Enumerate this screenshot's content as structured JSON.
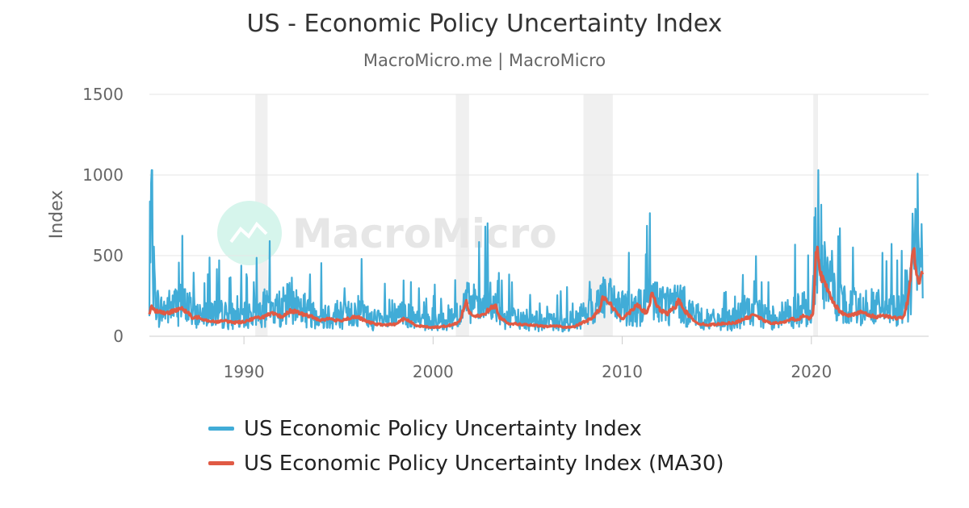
{
  "chart_data": {
    "type": "line",
    "title": "US - Economic Policy Uncertainty Index",
    "subtitle": "MacroMicro.me | MacroMicro",
    "ylabel": "Index",
    "xlabel": "",
    "ylim": [
      0,
      1500
    ],
    "xlim": [
      1985.0,
      2026.2
    ],
    "y_ticks": [
      0,
      500,
      1000,
      1500
    ],
    "x_ticks": [
      1990,
      2000,
      2010,
      2020
    ],
    "recession_bands": [
      [
        1990.6,
        1991.25
      ],
      [
        2001.2,
        2001.9
      ],
      [
        2007.95,
        2009.5
      ],
      [
        2020.1,
        2020.35
      ]
    ],
    "watermark": "MacroMicro",
    "legend_position": "bottom",
    "series": [
      {
        "name": "US Economic Policy Uncertainty Index",
        "color": "#41acd7",
        "style": "spiky-daily",
        "points": [
          [
            1985.0,
            100
          ],
          [
            1985.1,
            600
          ],
          [
            1985.25,
            300
          ],
          [
            1985.5,
            140
          ],
          [
            1986.0,
            160
          ],
          [
            1986.5,
            180
          ],
          [
            1987.0,
            170
          ],
          [
            1987.5,
            120
          ],
          [
            1988.0,
            150
          ],
          [
            1988.5,
            130
          ],
          [
            1989.0,
            120
          ],
          [
            1989.5,
            115
          ],
          [
            1990.0,
            110
          ],
          [
            1990.5,
            140
          ],
          [
            1991.0,
            160
          ],
          [
            1991.5,
            150
          ],
          [
            1992.0,
            160
          ],
          [
            1992.5,
            200
          ],
          [
            1993.0,
            160
          ],
          [
            1993.5,
            140
          ],
          [
            1994.0,
            130
          ],
          [
            1994.5,
            120
          ],
          [
            1995.0,
            130
          ],
          [
            1995.5,
            120
          ],
          [
            1996.0,
            150
          ],
          [
            1996.5,
            110
          ],
          [
            1997.0,
            90
          ],
          [
            1997.5,
            85
          ],
          [
            1998.0,
            95
          ],
          [
            1998.5,
            140
          ],
          [
            1999.0,
            90
          ],
          [
            1999.5,
            85
          ],
          [
            2000.0,
            80
          ],
          [
            2000.5,
            95
          ],
          [
            2001.0,
            110
          ],
          [
            2001.5,
            130
          ],
          [
            2001.75,
            200
          ],
          [
            2002.0,
            160
          ],
          [
            2002.5,
            160
          ],
          [
            2003.0,
            190
          ],
          [
            2003.5,
            120
          ],
          [
            2004.0,
            100
          ],
          [
            2004.5,
            95
          ],
          [
            2005.0,
            90
          ],
          [
            2005.5,
            85
          ],
          [
            2006.0,
            80
          ],
          [
            2006.5,
            80
          ],
          [
            2007.0,
            75
          ],
          [
            2007.5,
            90
          ],
          [
            2008.0,
            130
          ],
          [
            2008.5,
            170
          ],
          [
            2009.0,
            230
          ],
          [
            2009.5,
            180
          ],
          [
            2010.0,
            150
          ],
          [
            2010.5,
            180
          ],
          [
            2011.0,
            160
          ],
          [
            2011.5,
            220
          ],
          [
            2012.0,
            200
          ],
          [
            2012.5,
            180
          ],
          [
            2013.0,
            190
          ],
          [
            2013.5,
            150
          ],
          [
            2014.0,
            110
          ],
          [
            2014.5,
            90
          ],
          [
            2015.0,
            90
          ],
          [
            2015.5,
            95
          ],
          [
            2016.0,
            100
          ],
          [
            2016.5,
            140
          ],
          [
            2017.0,
            130
          ],
          [
            2017.5,
            110
          ],
          [
            2018.0,
            110
          ],
          [
            2018.5,
            120
          ],
          [
            2019.0,
            140
          ],
          [
            2019.5,
            150
          ],
          [
            2020.0,
            150
          ],
          [
            2020.2,
            500
          ],
          [
            2020.35,
            550
          ],
          [
            2020.6,
            400
          ],
          [
            2021.0,
            270
          ],
          [
            2021.5,
            200
          ],
          [
            2022.0,
            160
          ],
          [
            2022.5,
            170
          ],
          [
            2023.0,
            170
          ],
          [
            2023.5,
            160
          ],
          [
            2024.0,
            150
          ],
          [
            2024.5,
            140
          ],
          [
            2024.9,
            150
          ],
          [
            2025.2,
            300
          ],
          [
            2025.4,
            520
          ],
          [
            2025.6,
            450
          ],
          [
            2025.9,
            380
          ]
        ]
      },
      {
        "name": "US Economic Policy Uncertainty Index (MA30)",
        "color": "#e05a44",
        "style": "smooth",
        "points": [
          [
            1985.0,
            140
          ],
          [
            1985.1,
            190
          ],
          [
            1985.3,
            160
          ],
          [
            1985.6,
            150
          ],
          [
            1986.0,
            140
          ],
          [
            1986.3,
            160
          ],
          [
            1986.6,
            175
          ],
          [
            1987.0,
            150
          ],
          [
            1987.3,
            110
          ],
          [
            1987.6,
            120
          ],
          [
            1988.0,
            100
          ],
          [
            1988.5,
            90
          ],
          [
            1989.0,
            95
          ],
          [
            1989.5,
            85
          ],
          [
            1990.0,
            90
          ],
          [
            1990.5,
            110
          ],
          [
            1991.0,
            120
          ],
          [
            1991.5,
            140
          ],
          [
            1992.0,
            120
          ],
          [
            1992.5,
            160
          ],
          [
            1993.0,
            140
          ],
          [
            1993.3,
            130
          ],
          [
            1993.6,
            120
          ],
          [
            1994.0,
            100
          ],
          [
            1994.5,
            110
          ],
          [
            1995.0,
            95
          ],
          [
            1995.5,
            110
          ],
          [
            1996.0,
            120
          ],
          [
            1996.5,
            90
          ],
          [
            1997.0,
            75
          ],
          [
            1997.5,
            70
          ],
          [
            1998.0,
            75
          ],
          [
            1998.5,
            110
          ],
          [
            1998.8,
            90
          ],
          [
            1999.0,
            70
          ],
          [
            1999.5,
            60
          ],
          [
            2000.0,
            55
          ],
          [
            2000.5,
            60
          ],
          [
            2001.0,
            70
          ],
          [
            2001.4,
            90
          ],
          [
            2001.75,
            220
          ],
          [
            2001.9,
            150
          ],
          [
            2002.2,
            120
          ],
          [
            2002.6,
            130
          ],
          [
            2003.0,
            170
          ],
          [
            2003.3,
            190
          ],
          [
            2003.5,
            120
          ],
          [
            2004.0,
            80
          ],
          [
            2004.5,
            75
          ],
          [
            2005.0,
            70
          ],
          [
            2005.5,
            65
          ],
          [
            2006.0,
            60
          ],
          [
            2006.5,
            65
          ],
          [
            2007.0,
            55
          ],
          [
            2007.5,
            60
          ],
          [
            2008.0,
            90
          ],
          [
            2008.4,
            110
          ],
          [
            2008.8,
            170
          ],
          [
            2009.0,
            250
          ],
          [
            2009.3,
            210
          ],
          [
            2009.6,
            160
          ],
          [
            2010.0,
            110
          ],
          [
            2010.4,
            150
          ],
          [
            2010.8,
            200
          ],
          [
            2011.0,
            170
          ],
          [
            2011.3,
            140
          ],
          [
            2011.6,
            270
          ],
          [
            2011.8,
            200
          ],
          [
            2012.0,
            160
          ],
          [
            2012.4,
            140
          ],
          [
            2012.8,
            180
          ],
          [
            2013.0,
            230
          ],
          [
            2013.3,
            160
          ],
          [
            2013.6,
            120
          ],
          [
            2014.0,
            80
          ],
          [
            2014.5,
            70
          ],
          [
            2015.0,
            75
          ],
          [
            2015.5,
            80
          ],
          [
            2016.0,
            85
          ],
          [
            2016.5,
            110
          ],
          [
            2016.8,
            120
          ],
          [
            2017.0,
            140
          ],
          [
            2017.3,
            110
          ],
          [
            2017.6,
            90
          ],
          [
            2018.0,
            80
          ],
          [
            2018.4,
            85
          ],
          [
            2018.8,
            95
          ],
          [
            2019.0,
            110
          ],
          [
            2019.3,
            100
          ],
          [
            2019.6,
            130
          ],
          [
            2019.9,
            110
          ],
          [
            2020.1,
            140
          ],
          [
            2020.25,
            570
          ],
          [
            2020.35,
            520
          ],
          [
            2020.5,
            380
          ],
          [
            2020.8,
            300
          ],
          [
            2021.1,
            230
          ],
          [
            2021.5,
            150
          ],
          [
            2021.9,
            130
          ],
          [
            2022.3,
            140
          ],
          [
            2022.7,
            150
          ],
          [
            2023.0,
            130
          ],
          [
            2023.4,
            120
          ],
          [
            2023.8,
            130
          ],
          [
            2024.2,
            120
          ],
          [
            2024.6,
            110
          ],
          [
            2024.9,
            120
          ],
          [
            2025.15,
            250
          ],
          [
            2025.3,
            450
          ],
          [
            2025.4,
            580
          ],
          [
            2025.5,
            450
          ],
          [
            2025.65,
            320
          ],
          [
            2025.8,
            380
          ],
          [
            2025.9,
            360
          ]
        ]
      }
    ]
  }
}
